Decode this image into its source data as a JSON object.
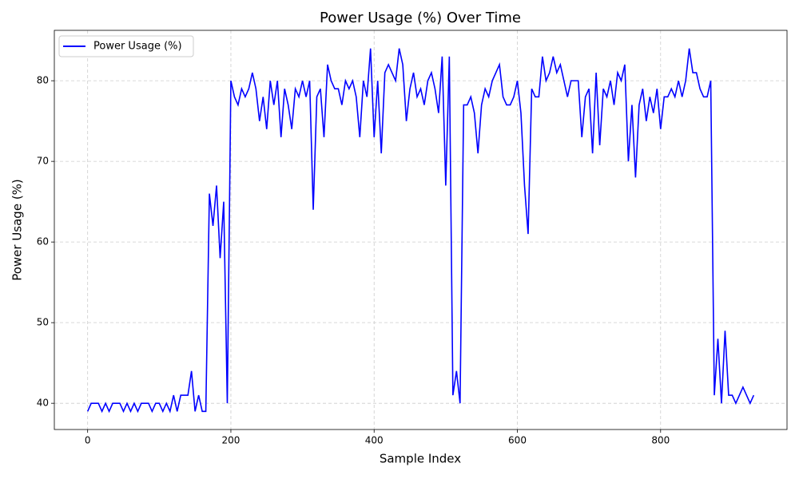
{
  "chart_data": {
    "type": "line",
    "title": "Power Usage (%) Over Time",
    "xlabel": "Sample Index",
    "ylabel": "Power Usage (%)",
    "x": [
      0,
      5,
      10,
      15,
      20,
      25,
      30,
      35,
      40,
      45,
      50,
      55,
      60,
      65,
      70,
      75,
      80,
      85,
      90,
      95,
      100,
      105,
      110,
      115,
      120,
      125,
      130,
      135,
      140,
      145,
      150,
      155,
      160,
      165,
      170,
      175,
      180,
      185,
      190,
      195,
      200,
      205,
      210,
      215,
      220,
      225,
      230,
      235,
      240,
      245,
      250,
      255,
      260,
      265,
      270,
      275,
      280,
      285,
      290,
      295,
      300,
      305,
      310,
      315,
      320,
      325,
      330,
      335,
      340,
      345,
      350,
      355,
      360,
      365,
      370,
      375,
      380,
      385,
      390,
      395,
      400,
      405,
      410,
      415,
      420,
      425,
      430,
      435,
      440,
      445,
      450,
      455,
      460,
      465,
      470,
      475,
      480,
      485,
      490,
      495,
      500,
      505,
      510,
      515,
      520,
      525,
      530,
      535,
      540,
      545,
      550,
      555,
      560,
      565,
      570,
      575,
      580,
      585,
      590,
      595,
      600,
      605,
      610,
      615,
      620,
      625,
      630,
      635,
      640,
      645,
      650,
      655,
      660,
      665,
      670,
      675,
      680,
      685,
      690,
      695,
      700,
      705,
      710,
      715,
      720,
      725,
      730,
      735,
      740,
      745,
      750,
      755,
      760,
      765,
      770,
      775,
      780,
      785,
      790,
      795,
      800,
      805,
      810,
      815,
      820,
      825,
      830,
      835,
      840,
      845,
      850,
      855,
      860,
      865,
      870,
      875,
      880,
      885,
      890,
      895,
      900,
      905,
      910,
      915,
      920,
      925,
      930
    ],
    "series": [
      {
        "name": "Power Usage (%)",
        "color": "#0000ff",
        "values": [
          39,
          40,
          40,
          40,
          39,
          40,
          39,
          40,
          40,
          40,
          39,
          40,
          39,
          40,
          39,
          40,
          40,
          40,
          39,
          40,
          40,
          39,
          40,
          39,
          41,
          39,
          41,
          41,
          41,
          44,
          39,
          41,
          39,
          39,
          66,
          62,
          67,
          58,
          65,
          40,
          80,
          78,
          77,
          79,
          78,
          79,
          81,
          79,
          75,
          78,
          74,
          80,
          77,
          80,
          73,
          79,
          77,
          74,
          79,
          78,
          80,
          78,
          80,
          64,
          78,
          79,
          73,
          82,
          80,
          79,
          79,
          77,
          80,
          79,
          80,
          78,
          73,
          80,
          78,
          84,
          73,
          80,
          71,
          81,
          82,
          81,
          80,
          84,
          82,
          75,
          79,
          81,
          78,
          79,
          77,
          80,
          81,
          79,
          76,
          83,
          67,
          83,
          41,
          44,
          40,
          77,
          77,
          78,
          76,
          71,
          77,
          79,
          78,
          80,
          81,
          82,
          78,
          77,
          77,
          78,
          80,
          76,
          67,
          61,
          79,
          78,
          78,
          83,
          80,
          81,
          83,
          81,
          82,
          80,
          78,
          80,
          80,
          80,
          73,
          78,
          79,
          71,
          81,
          72,
          79,
          78,
          80,
          77,
          81,
          80,
          82,
          70,
          77,
          68,
          77,
          79,
          75,
          78,
          76,
          79,
          74,
          78,
          78,
          79,
          78,
          80,
          78,
          80,
          84,
          81,
          81,
          79,
          78,
          78,
          80,
          41,
          48,
          40,
          49,
          41,
          41,
          40,
          41,
          42,
          41,
          40,
          41
        ]
      }
    ],
    "xlim": [
      -46.5,
      976.5
    ],
    "ylim": [
      36.75,
      86.25
    ],
    "xticks": [
      0,
      200,
      400,
      600,
      800
    ],
    "yticks": [
      40,
      50,
      60,
      70,
      80
    ],
    "grid": true,
    "legend": "upper left"
  }
}
